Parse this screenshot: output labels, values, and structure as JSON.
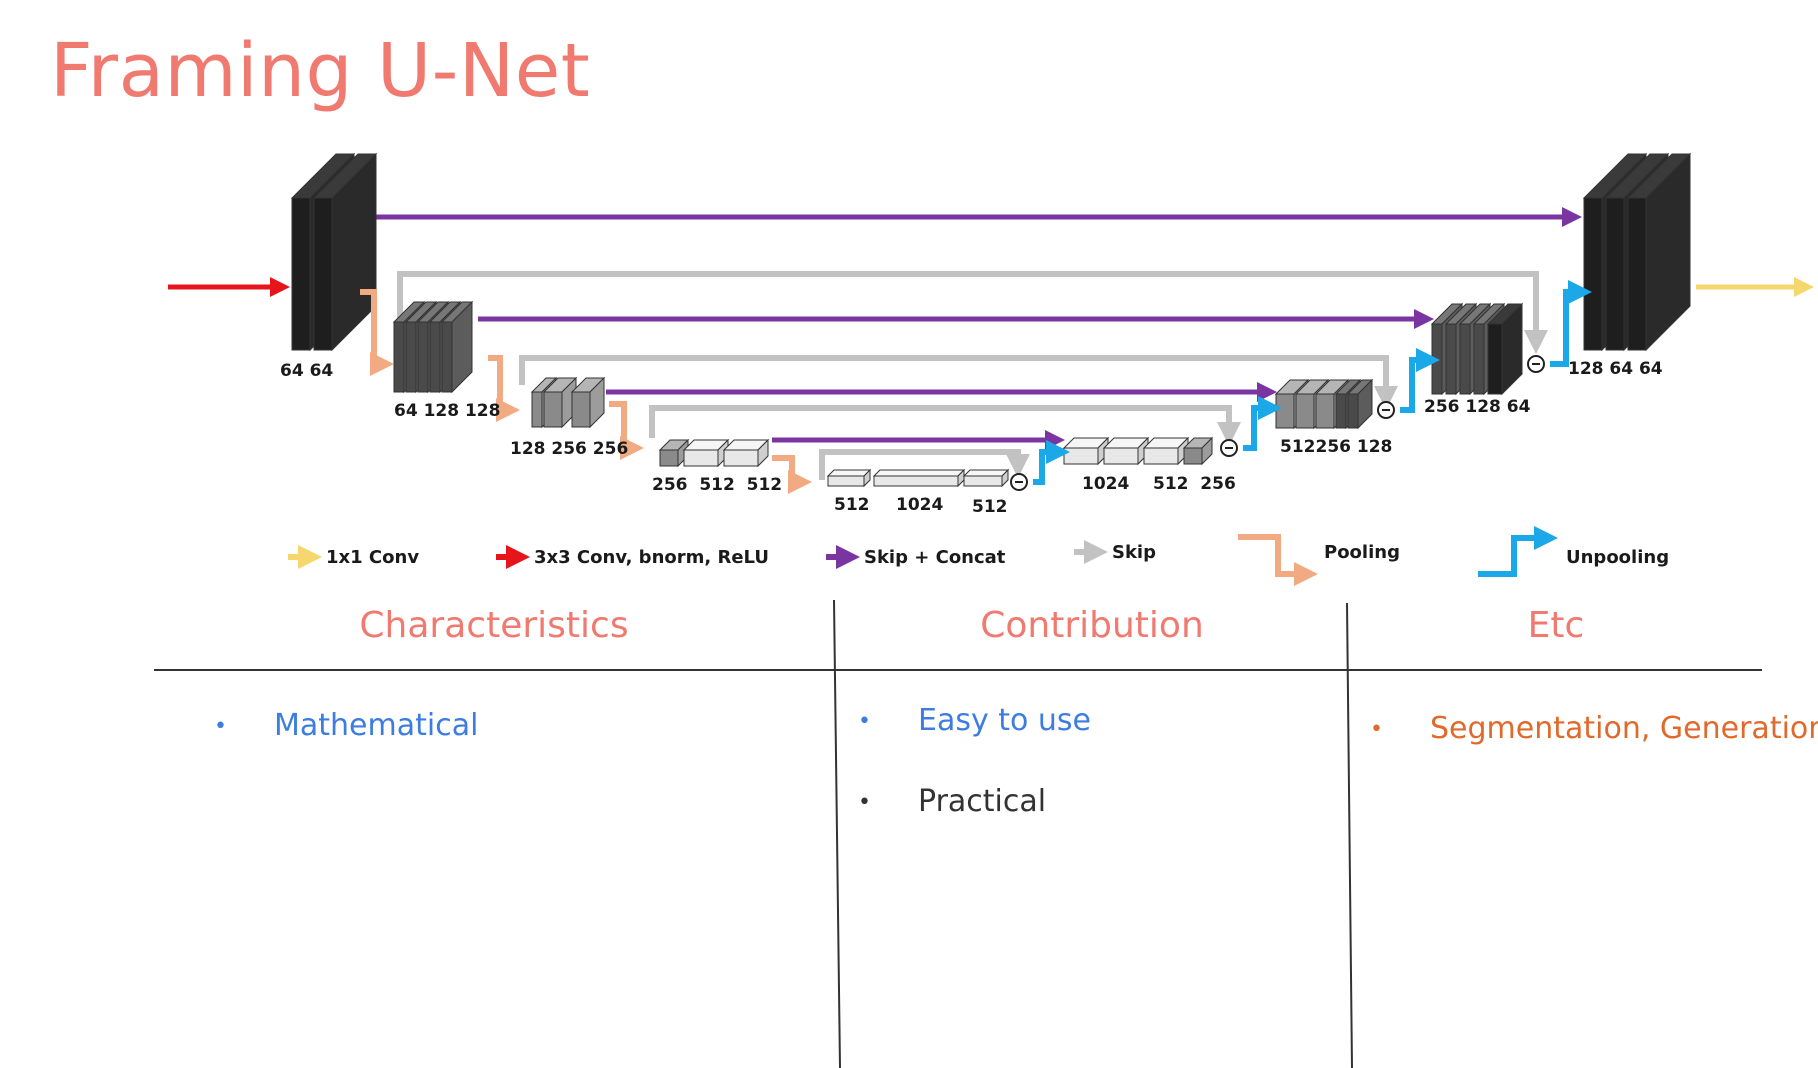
{
  "title": "Framing U-Net",
  "diagram": {
    "dims": {
      "enc1": "64 64",
      "enc2": "64 128 128",
      "enc3": "128 256 256",
      "enc4": "256  512  512",
      "bottom_left": "512",
      "bottom_mid": "1024",
      "bottom_right": "512",
      "dec4": "1024    512  256",
      "dec3": "512256 128",
      "dec2": "256 128 64",
      "dec1": "128 64 64"
    },
    "colors": {
      "conv1x1": "#f5d76e",
      "conv3x3": "#e8141b",
      "skip_concat": "#7b35a0",
      "skip": "#c2c2c2",
      "pooling": "#f2aa82",
      "unpooling": "#1ba8e8"
    },
    "legend": [
      {
        "key": "conv1x1",
        "label": "1x1 Conv"
      },
      {
        "key": "conv3x3",
        "label": "3x3 Conv, bnorm, ReLU"
      },
      {
        "key": "skip_concat",
        "label": "Skip + Concat"
      },
      {
        "key": "skip",
        "label": "Skip"
      },
      {
        "key": "pooling",
        "label": "Pooling"
      },
      {
        "key": "unpooling",
        "label": "Unpooling"
      }
    ]
  },
  "columns": [
    {
      "heading": "Characteristics",
      "bullets": [
        {
          "text": "Mathematical",
          "color": "#3d7de0"
        }
      ]
    },
    {
      "heading": "Contribution",
      "bullets": [
        {
          "text": "Easy to use",
          "color": "#3d7de0"
        },
        {
          "text": "Practical",
          "color": "#333333"
        }
      ]
    },
    {
      "heading": "Etc",
      "bullets": [
        {
          "text": "Segmentation, Generation",
          "color": "#e06a2c"
        }
      ]
    }
  ]
}
